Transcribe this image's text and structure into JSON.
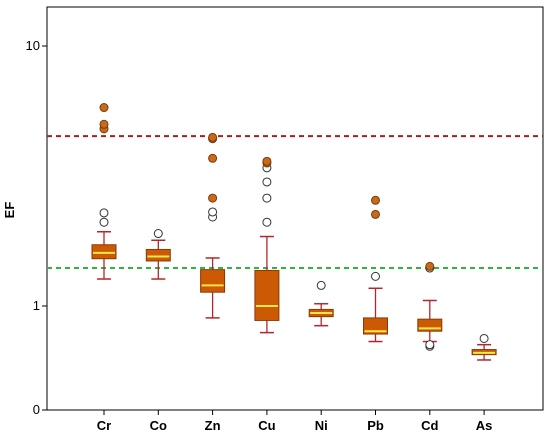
{
  "chart_data": {
    "type": "boxplot",
    "title": "",
    "ylabel": "EF",
    "xlabel": "",
    "yscale": "log",
    "ylim": [
      0.4,
      15
    ],
    "y_tick_labels": [
      "0",
      "1",
      "10"
    ],
    "y_tick_values": [
      0.4,
      1,
      10
    ],
    "grid": false,
    "reference_lines": [
      {
        "value": 4.5,
        "style": "dashed",
        "color": "#aa1d18"
      },
      {
        "value": 1.4,
        "style": "dashed",
        "color": "#2db83d"
      }
    ],
    "colors": {
      "box_fill": "#cc5a05",
      "box_stroke": "#8a3a05",
      "median": "#f7e74a",
      "whisker": "#b5262c",
      "extreme_fill": "#c96a1a",
      "extreme_stroke": "#7a3a0a",
      "outlier_stroke": "#333333"
    },
    "categories": [
      "Cr",
      "Co",
      "Zn",
      "Cu",
      "Ni",
      "Pb",
      "Cd",
      "As"
    ],
    "boxes": [
      {
        "category": "Cr",
        "whisker_low": 1.27,
        "q1": 1.52,
        "median": 1.6,
        "q3": 1.72,
        "whisker_high": 1.93,
        "outliers": [
          2.1,
          2.28
        ],
        "extremes": [
          4.8,
          5.0,
          5.8
        ]
      },
      {
        "category": "Co",
        "whisker_low": 1.27,
        "q1": 1.49,
        "median": 1.55,
        "q3": 1.65,
        "whisker_high": 1.79,
        "outliers": [
          1.9
        ],
        "extremes": []
      },
      {
        "category": "Zn",
        "whisker_low": 0.9,
        "q1": 1.13,
        "median": 1.2,
        "q3": 1.38,
        "whisker_high": 1.53,
        "outliers": [
          2.2,
          2.3
        ],
        "extremes": [
          2.6,
          3.7,
          4.4,
          4.45
        ]
      },
      {
        "category": "Cu",
        "whisker_low": 0.79,
        "q1": 0.88,
        "median": 1.0,
        "q3": 1.37,
        "whisker_high": 1.85,
        "outliers": [
          2.1,
          2.6,
          3.0,
          3.4
        ],
        "extremes": [
          3.55,
          3.6
        ]
      },
      {
        "category": "Ni",
        "whisker_low": 0.84,
        "q1": 0.91,
        "median": 0.94,
        "q3": 0.97,
        "whisker_high": 1.02,
        "outliers": [
          1.2
        ],
        "extremes": []
      },
      {
        "category": "Pb",
        "whisker_low": 0.73,
        "q1": 0.78,
        "median": 0.8,
        "q3": 0.9,
        "whisker_high": 1.17,
        "outliers": [
          1.3
        ],
        "extremes": [
          2.25,
          2.55
        ]
      },
      {
        "category": "Cd",
        "whisker_low": 0.73,
        "q1": 0.8,
        "median": 0.82,
        "q3": 0.89,
        "whisker_high": 1.05,
        "outliers": [
          0.7,
          0.71,
          1.4
        ],
        "extremes": [
          1.42
        ]
      },
      {
        "category": "As",
        "whisker_low": 0.62,
        "q1": 0.65,
        "median": 0.66,
        "q3": 0.68,
        "whisker_high": 0.71,
        "outliers": [
          0.75
        ],
        "extremes": []
      }
    ]
  }
}
